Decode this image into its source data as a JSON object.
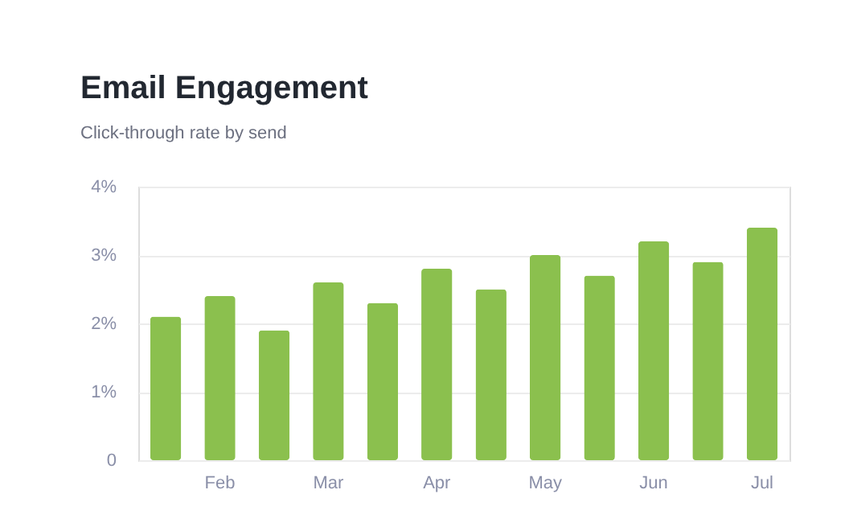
{
  "chart_data": {
    "type": "bar",
    "title": "Email Engagement",
    "subtitle": "Click-through rate by send",
    "categories": [
      null,
      "Feb",
      null,
      "Mar",
      null,
      "Apr",
      null,
      "May",
      null,
      "Jun",
      null,
      "Jul"
    ],
    "values": [
      2.1,
      2.4,
      1.9,
      2.6,
      2.3,
      2.8,
      2.5,
      3.0,
      2.7,
      3.2,
      2.9,
      3.4
    ],
    "color": "#8bc04e",
    "ylim": [
      0,
      4
    ],
    "yticks": [
      0,
      {
        "value": 1,
        "label": "1%"
      },
      {
        "value": 2,
        "label": "2%"
      },
      {
        "value": 3,
        "label": "3%"
      },
      {
        "value": 4,
        "label": "4%"
      }
    ],
    "grid": "y"
  }
}
